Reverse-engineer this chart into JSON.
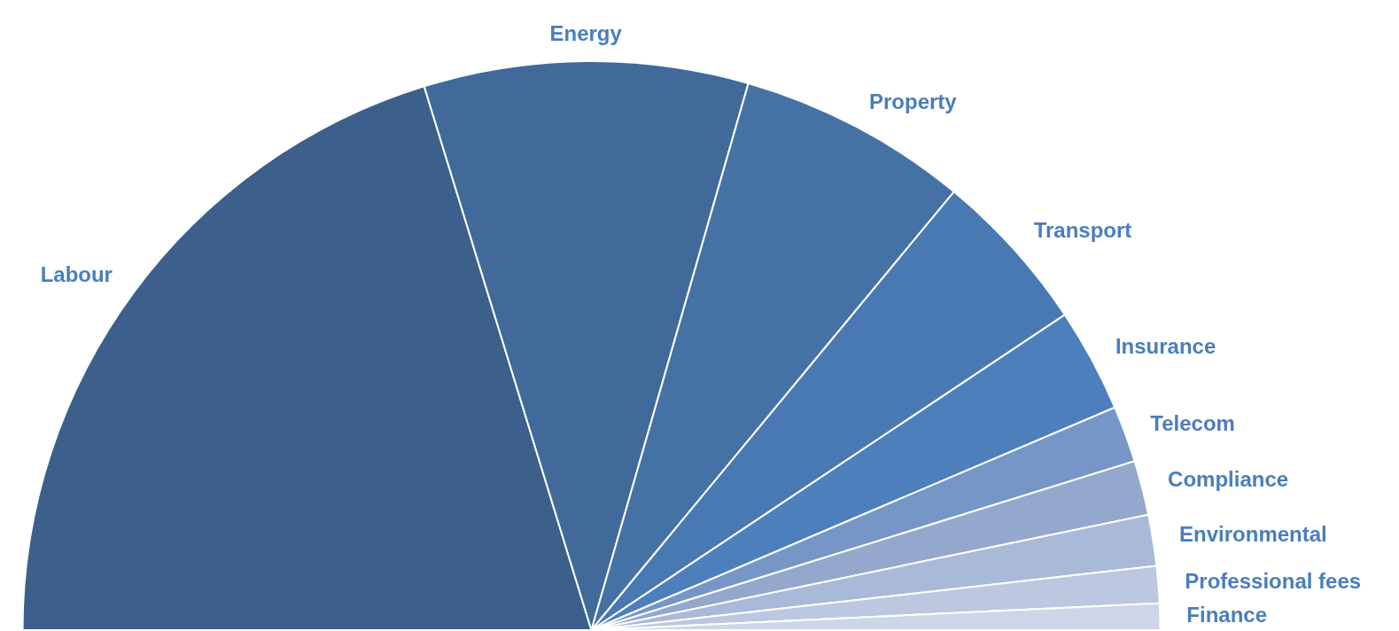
{
  "chart_data": {
    "type": "pie",
    "categories": [
      "Labour",
      "Energy",
      "Property",
      "Transport",
      "Insurance",
      "Telecom",
      "Compliance",
      "Environmental",
      "Professional fees",
      "Finance"
    ],
    "values": [
      40.5,
      18.4,
      13.1,
      9.3,
      5.9,
      3.2,
      3.1,
      2.9,
      2.1,
      1.5
    ],
    "colors": [
      "#3c5f8c",
      "#416a9a",
      "#4572a5",
      "#4879b2",
      "#4c7fbc",
      "#7596c6",
      "#94a8ce",
      "#a9b9d8",
      "#bcc8e0",
      "#cdd6e9"
    ],
    "legend": false
  }
}
